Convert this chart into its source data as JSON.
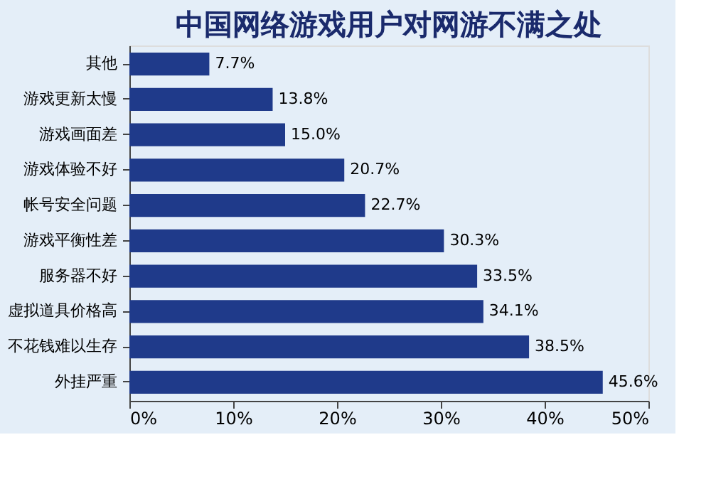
{
  "chart_data": {
    "type": "bar",
    "orientation": "horizontal",
    "title": "中国网络游戏用户对网游不满之处",
    "categories": [
      "其他",
      "游戏更新太慢",
      "游戏画面差",
      "游戏体验不好",
      "帐号安全问题",
      "游戏平衡性差",
      "服务器不好",
      "虚拟道具价格高",
      "不花钱难以生存",
      "外挂严重"
    ],
    "values": [
      7.7,
      13.8,
      15.0,
      20.7,
      22.7,
      30.3,
      33.5,
      34.1,
      38.5,
      45.6
    ],
    "value_labels": [
      "7.7%",
      "13.8%",
      "15.0%",
      "20.7%",
      "22.7%",
      "30.3%",
      "33.5%",
      "34.1%",
      "38.5%",
      "45.6%"
    ],
    "color": "#1f3a8a",
    "xlim": [
      0,
      50
    ],
    "xticks": [
      {
        "value": 0,
        "label": "0%"
      },
      {
        "value": 10,
        "label": "10%"
      },
      {
        "value": 20,
        "label": "20%"
      },
      {
        "value": 30,
        "label": "30%"
      },
      {
        "value": 40,
        "label": "40%"
      },
      {
        "value": 50,
        "label": "50%"
      }
    ],
    "grid": false
  }
}
